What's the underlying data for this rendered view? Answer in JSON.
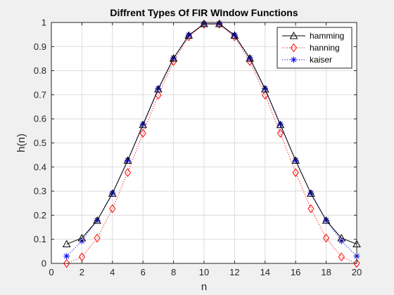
{
  "chart_data": {
    "type": "line",
    "title": "Diffrent Types Of FIR WIndow Functions",
    "xlabel": "n",
    "ylabel": "h(n)",
    "xlim": [
      0,
      20
    ],
    "ylim": [
      0,
      1
    ],
    "xticks": [
      "0",
      "2",
      "4",
      "6",
      "8",
      "10",
      "12",
      "14",
      "16",
      "18",
      "20"
    ],
    "yticks": [
      "0",
      "0.1",
      "0.2",
      "0.3",
      "0.4",
      "0.5",
      "0.6",
      "0.7",
      "0.8",
      "0.9",
      "1"
    ],
    "grid": true,
    "legend_position": "top-right",
    "x": [
      1,
      2,
      3,
      4,
      5,
      6,
      7,
      8,
      9,
      10,
      11,
      12,
      13,
      14,
      15,
      16,
      17,
      18,
      19,
      20
    ],
    "series": [
      {
        "name": "hamming",
        "color": "#000000",
        "line_style": "solid",
        "marker": "triangle",
        "values": [
          0.08,
          0.105,
          0.178,
          0.29,
          0.427,
          0.575,
          0.723,
          0.851,
          0.946,
          0.994,
          0.994,
          0.946,
          0.851,
          0.723,
          0.575,
          0.427,
          0.29,
          0.178,
          0.105,
          0.08
        ]
      },
      {
        "name": "hanning",
        "color": "#ff0000",
        "line_style": "dotted",
        "marker": "diamond",
        "values": [
          0.0,
          0.027,
          0.105,
          0.227,
          0.377,
          0.54,
          0.698,
          0.838,
          0.941,
          0.993,
          0.993,
          0.941,
          0.838,
          0.698,
          0.54,
          0.377,
          0.227,
          0.105,
          0.027,
          0.0
        ]
      },
      {
        "name": "kaiser",
        "color": "#0000ff",
        "line_style": "dotted",
        "marker": "asterisk",
        "values": [
          0.03,
          0.093,
          0.179,
          0.292,
          0.428,
          0.578,
          0.726,
          0.853,
          0.948,
          0.995,
          0.995,
          0.948,
          0.853,
          0.726,
          0.578,
          0.428,
          0.292,
          0.179,
          0.093,
          0.03
        ]
      }
    ]
  }
}
